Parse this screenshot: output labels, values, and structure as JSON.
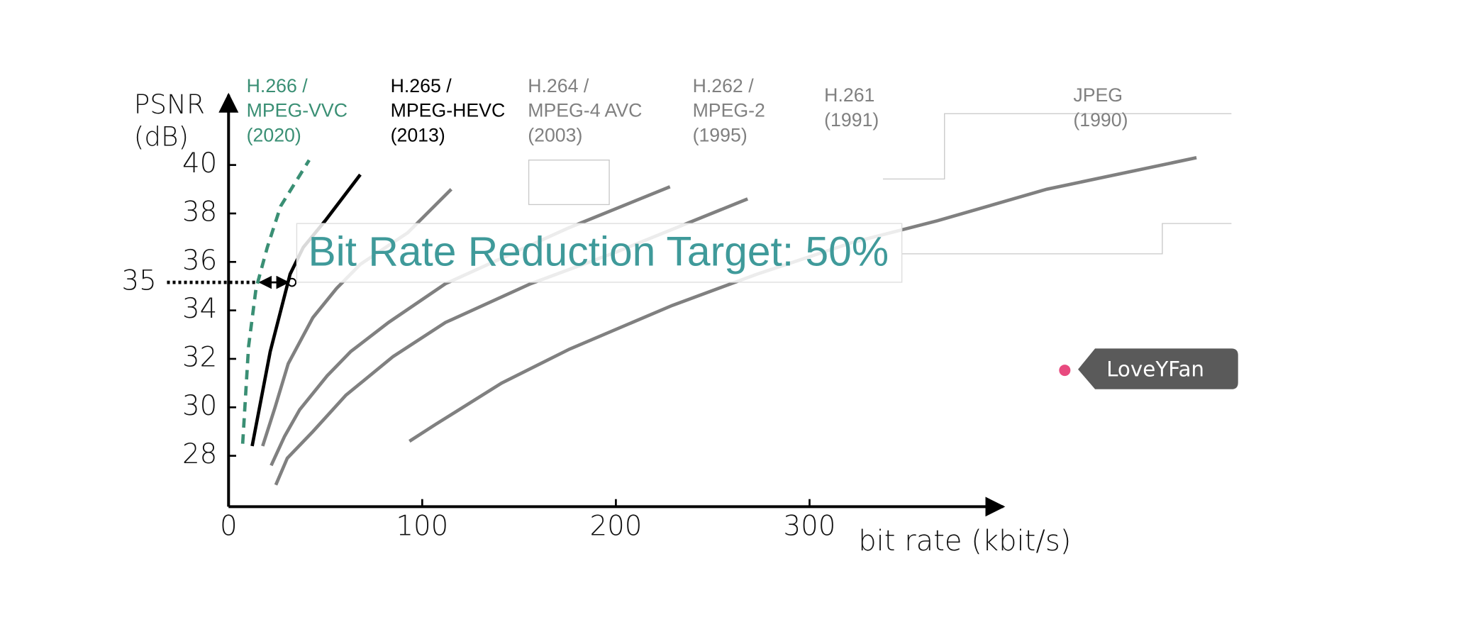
{
  "chart_data": {
    "type": "line",
    "ylabel": [
      "PSNR",
      "(dB)"
    ],
    "xlabel": "bit rate (kbit/s)",
    "xlim": [
      0,
      400
    ],
    "ylim": [
      25.9,
      42.9
    ],
    "xticks": [
      0,
      100,
      200,
      300
    ],
    "yticks": [
      28,
      30,
      32,
      34,
      36,
      38,
      40
    ],
    "series": [
      {
        "name": [
          "H.266 /",
          "MPEG-VVC",
          "(2020)"
        ],
        "color": "#3a8f74",
        "dashed": true,
        "x": [
          7.3,
          10.3,
          14.2,
          20.0,
          26.9,
          41.6
        ],
        "values": [
          28.5,
          32.5,
          34.9,
          36.6,
          38.3,
          40.2
        ]
      },
      {
        "name": [
          "H.265 /",
          "MPEG-HEVC",
          "(2013)"
        ],
        "color": "#000000",
        "dashed": false,
        "x": [
          12.2,
          21.5,
          31.8,
          38.6,
          49.9,
          68.0
        ],
        "values": [
          28.4,
          32.3,
          35.5,
          36.6,
          37.7,
          39.6
        ]
      },
      {
        "name": [
          "H.264 /",
          "MPEG-4 AVC",
          "(2003)"
        ],
        "color": "#808080",
        "dashed": false,
        "x": [
          17.6,
          24,
          30.8,
          43.5,
          55.7,
          68,
          92.4,
          115
        ],
        "values": [
          28.4,
          30,
          31.8,
          33.7,
          34.9,
          35.9,
          37.2,
          39.0
        ]
      },
      {
        "name": [
          "H.262 /",
          "MPEG-2",
          "(1995)"
        ],
        "color": "#808080",
        "dashed": false,
        "x": [
          22,
          28.9,
          36.7,
          50.9,
          63.1,
          82.6,
          112,
          175.5,
          227.9
        ],
        "values": [
          27.6,
          28.8,
          29.9,
          31.3,
          32.3,
          33.5,
          35.1,
          37.4,
          39.1
        ]
      },
      {
        "name": [
          "H.261",
          "(1991)"
        ],
        "color": "#808080",
        "dashed": false,
        "x": [
          24.4,
          30.3,
          43.5,
          60.6,
          85,
          112,
          156,
          200,
          268
        ],
        "values": [
          26.8,
          27.9,
          29.0,
          30.5,
          32.1,
          33.5,
          35.1,
          36.4,
          38.6
        ]
      },
      {
        "name": [
          "JPEG",
          "(1990)"
        ],
        "color": "#808080",
        "dashed": false,
        "x": [
          93.4,
          107,
          117,
          141,
          176,
          229,
          273,
          322,
          366,
          422.5,
          499.8
        ],
        "values": [
          28.6,
          29.3,
          29.8,
          31.0,
          32.4,
          34.2,
          35.5,
          36.8,
          37.7,
          39.0,
          40.3
        ]
      }
    ],
    "reference_psnr": 35,
    "annotation": "Bit Rate Reduction Target: 50%",
    "watermark": "LoveYFan"
  }
}
